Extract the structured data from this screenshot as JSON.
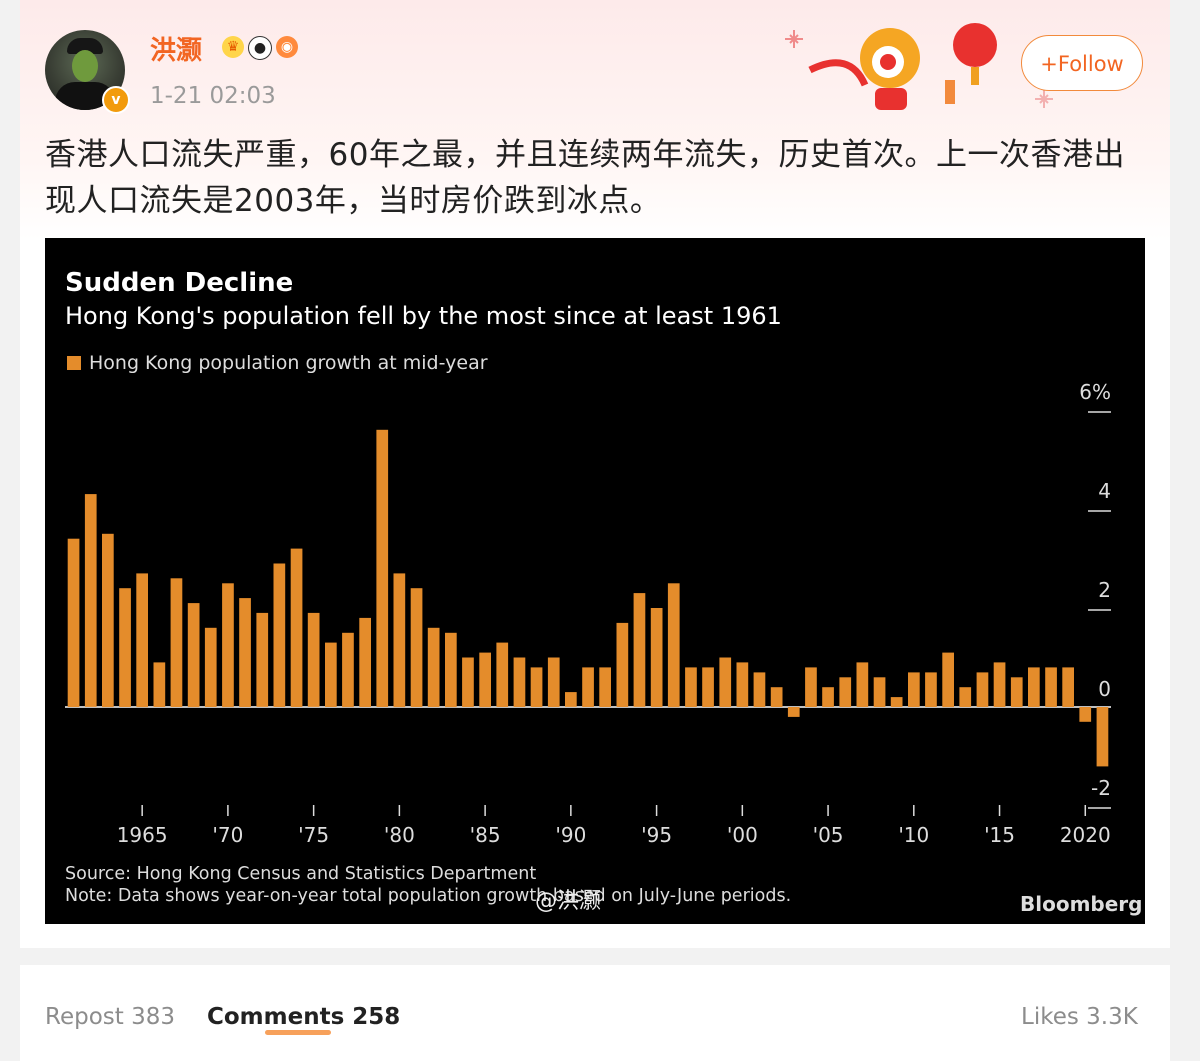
{
  "post": {
    "username": "洪灏",
    "timestamp": "1-21 02:03",
    "follow_label": "+Follow",
    "text": "香港人口流失严重，60年之最，并且连续两年流失，历史首次。上一次香港出现人口流失是2003年，当时房价跌到冰点。",
    "badge_icons": [
      "crown-icon",
      "panda-icon",
      "eye-badge-icon"
    ],
    "verified_icon": "v"
  },
  "watermark": "@洪灏",
  "chart_data": {
    "type": "bar",
    "title": "Sudden Decline",
    "subtitle": "Hong Kong's population fell by the most since at least 1961",
    "legend": "Hong Kong population growth at mid-year",
    "source": "Source: Hong Kong Census and Statistics Department",
    "note": "Note: Data shows year-on-year total population growth based on July-June periods.",
    "brand": "Bloomberg",
    "bar_color": "#e48c2b",
    "ylim": [
      -2,
      6
    ],
    "yticks": [
      "6%",
      "4",
      "2",
      "0",
      "-2"
    ],
    "ytick_values": [
      6,
      4,
      2,
      0,
      -2
    ],
    "xtick_labels": [
      "1965",
      "'70",
      "'75",
      "'80",
      "'85",
      "'90",
      "'95",
      "'00",
      "'05",
      "'10",
      "'15",
      "2020"
    ],
    "xtick_years": [
      1965,
      1970,
      1975,
      1980,
      1985,
      1990,
      1995,
      2000,
      2005,
      2010,
      2015,
      2020
    ],
    "x": [
      1961,
      1962,
      1963,
      1964,
      1965,
      1966,
      1967,
      1968,
      1969,
      1970,
      1971,
      1972,
      1973,
      1974,
      1975,
      1976,
      1977,
      1978,
      1979,
      1980,
      1981,
      1982,
      1983,
      1984,
      1985,
      1986,
      1987,
      1988,
      1989,
      1990,
      1991,
      1992,
      1993,
      1994,
      1995,
      1996,
      1997,
      1998,
      1999,
      2000,
      2001,
      2002,
      2003,
      2004,
      2005,
      2006,
      2007,
      2008,
      2009,
      2010,
      2011,
      2012,
      2013,
      2014,
      2015,
      2016,
      2017,
      2018,
      2019,
      2020,
      2021
    ],
    "values": [
      3.4,
      4.3,
      3.5,
      2.4,
      2.7,
      0.9,
      2.6,
      2.1,
      1.6,
      2.5,
      2.2,
      1.9,
      2.9,
      3.2,
      1.9,
      1.3,
      1.5,
      1.8,
      5.6,
      2.7,
      2.4,
      1.6,
      1.5,
      1.0,
      1.1,
      1.3,
      1.0,
      0.8,
      1.0,
      0.3,
      0.8,
      0.8,
      1.7,
      2.3,
      2.0,
      2.5,
      0.8,
      0.8,
      1.0,
      0.9,
      0.7,
      0.4,
      -0.2,
      0.8,
      0.4,
      0.6,
      0.9,
      0.6,
      0.2,
      0.7,
      0.7,
      1.1,
      0.4,
      0.7,
      0.9,
      0.6,
      0.8,
      0.8,
      0.8,
      -0.3,
      -1.2
    ]
  },
  "tabs": {
    "repost": "Repost 383",
    "comments": "Comments 258",
    "likes": "Likes 3.3K"
  }
}
